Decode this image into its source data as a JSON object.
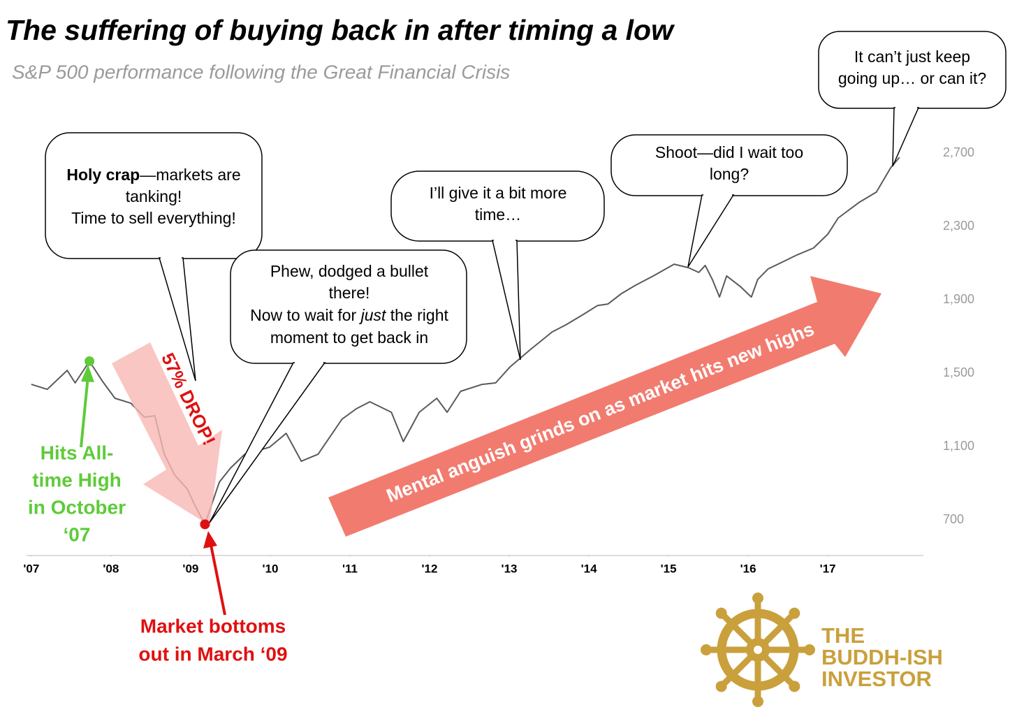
{
  "chart_data": {
    "type": "line",
    "title": "The suffering of buying back in after timing a low",
    "subtitle": "S&P 500 performance following the Great Financial Crisis",
    "x": [
      2007.0,
      2007.2,
      2007.45,
      2007.55,
      2007.73,
      2007.89,
      2008.05,
      2008.25,
      2008.42,
      2008.55,
      2008.67,
      2008.8,
      2008.96,
      2009.04,
      2009.18,
      2009.36,
      2009.5,
      2009.68,
      2009.99,
      2010.2,
      2010.39,
      2010.6,
      2010.9,
      2011.08,
      2011.25,
      2011.52,
      2011.67,
      2011.87,
      2012.09,
      2012.22,
      2012.39,
      2012.66,
      2012.83,
      2013.01,
      2013.27,
      2013.54,
      2013.71,
      2013.93,
      2014.11,
      2014.24,
      2014.41,
      2014.59,
      2014.81,
      2015.07,
      2015.25,
      2015.38,
      2015.46,
      2015.55,
      2015.64,
      2015.73,
      2015.9,
      2016.04,
      2016.12,
      2016.25,
      2016.43,
      2016.61,
      2016.82,
      2017.0,
      2017.13,
      2017.39,
      2017.61,
      2017.79,
      2017.9
    ],
    "values": [
      1439,
      1412,
      1515,
      1447,
      1565,
      1458,
      1363,
      1336,
      1260,
      1268,
      1058,
      944,
      868,
      791,
      676,
      906,
      982,
      1058,
      1096,
      1172,
      1020,
      1058,
      1249,
      1306,
      1344,
      1287,
      1127,
      1287,
      1363,
      1287,
      1401,
      1439,
      1447,
      1534,
      1630,
      1725,
      1763,
      1820,
      1869,
      1877,
      1934,
      1980,
      2030,
      2094,
      2075,
      2049,
      2087,
      2011,
      1915,
      2030,
      1973,
      1915,
      2011,
      2068,
      2106,
      2144,
      2182,
      2258,
      2346,
      2430,
      2487,
      2620,
      2677
    ],
    "color": "#5a5a5a",
    "xlim": [
      2006.94,
      2018.2
    ],
    "ylim": [
      506,
      3001
    ],
    "xticks": [
      {
        "value": 2007,
        "label": "'07"
      },
      {
        "value": 2008,
        "label": "'08"
      },
      {
        "value": 2009,
        "label": "'09"
      },
      {
        "value": 2010,
        "label": "'10"
      },
      {
        "value": 2011,
        "label": "'11"
      },
      {
        "value": 2012,
        "label": "'12"
      },
      {
        "value": 2013,
        "label": "'13"
      },
      {
        "value": 2014,
        "label": "'14"
      },
      {
        "value": 2015,
        "label": "'15"
      },
      {
        "value": 2016,
        "label": "'16"
      },
      {
        "value": 2017,
        "label": "'17"
      }
    ],
    "yticks": [
      700,
      {
        "value": 1100,
        "label": "1,100"
      },
      {
        "value": 1500,
        "label": "1,500"
      },
      {
        "value": 1900,
        "label": "1,900"
      },
      {
        "value": 2300,
        "label": "2,300"
      },
      {
        "value": 2700,
        "label": "2,700"
      }
    ],
    "grid": false,
    "annotations": {
      "drop": "57% DROP!",
      "trend": "Mental anguish grinds on as market hits new highs",
      "ath": {
        "lines": [
          "Hits All-",
          "time High",
          "in October",
          "‘07"
        ],
        "color": "#5ecb3a"
      },
      "low": {
        "lines": [
          "Market bottoms",
          "out in March ‘09"
        ],
        "color": "#e01010"
      }
    },
    "bubbles": [
      {
        "lines": [
          [
            "Holy crap",
            "—markets are"
          ],
          [
            "tanking!"
          ],
          [
            "Time to sell everything!"
          ]
        ]
      },
      {
        "lines": [
          [
            "Phew, dodged a bullet"
          ],
          [
            "there!"
          ],
          [
            "Now to wait for ",
            "just",
            " the right"
          ],
          [
            "moment to get back in"
          ]
        ]
      },
      {
        "lines": [
          [
            "I’ll give it a bit more"
          ],
          [
            "time…"
          ]
        ]
      },
      {
        "lines": [
          [
            "Shoot—did I wait too"
          ],
          [
            "long?"
          ]
        ]
      },
      {
        "lines": [
          [
            "It can’t just keep"
          ],
          [
            "going up… or can it?"
          ]
        ]
      }
    ],
    "logo": {
      "lines": [
        "THE",
        "BUDDH-ISH",
        "INVESTOR"
      ],
      "color": "#c9a03c"
    }
  }
}
